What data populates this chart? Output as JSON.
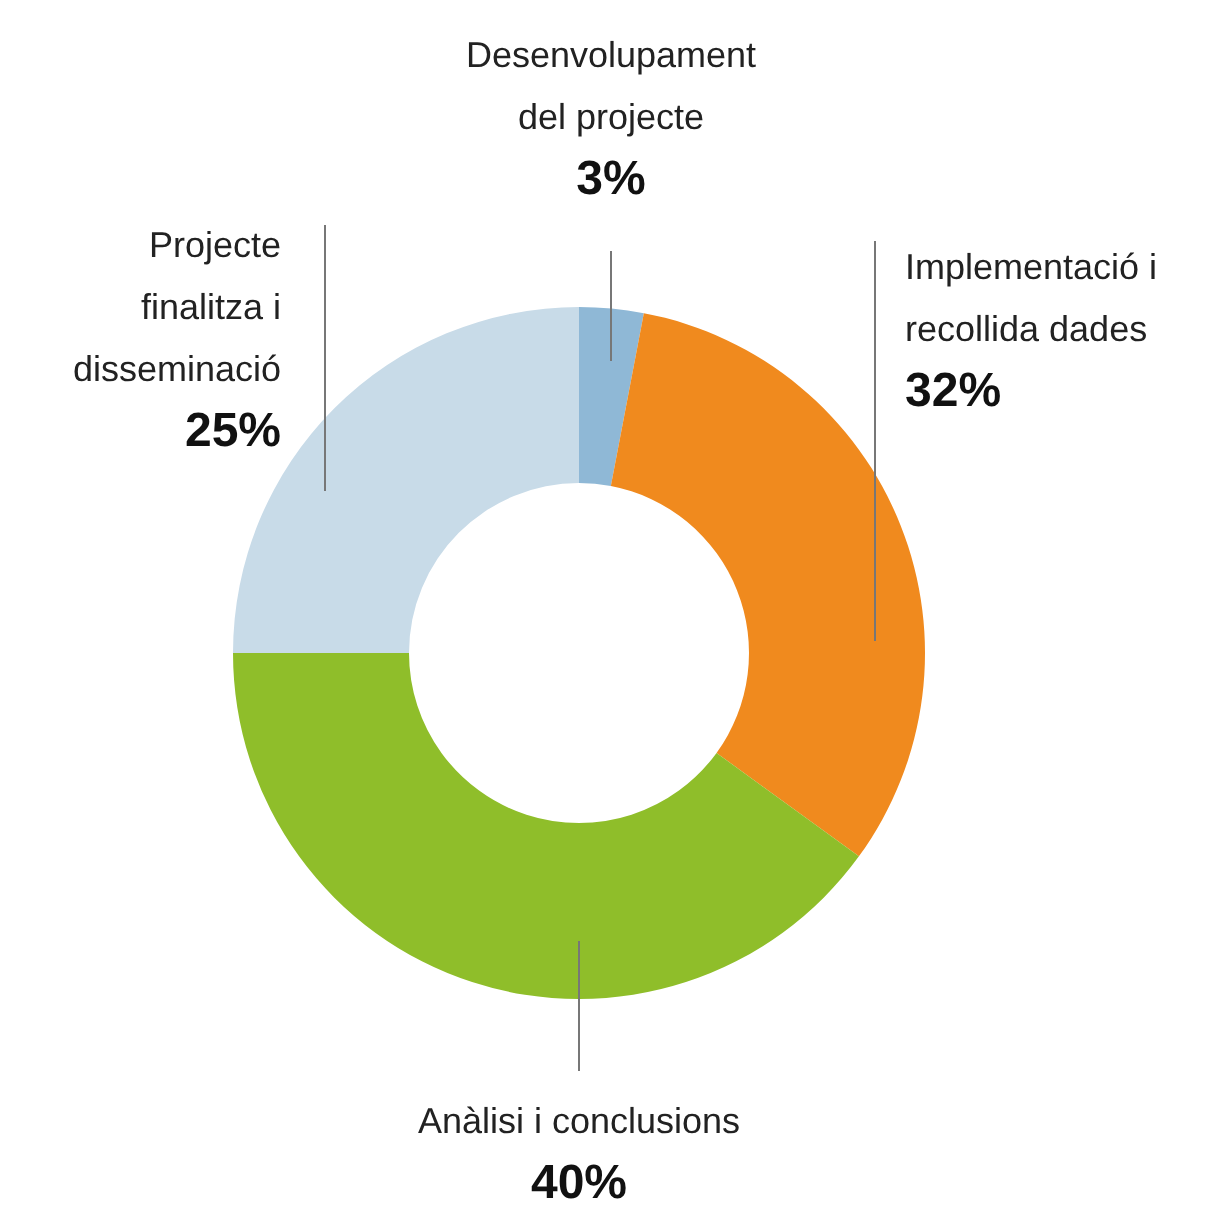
{
  "chart_data": {
    "type": "donut",
    "categories": [
      "Desenvolupament del projecte",
      "Implementació i recollida dades",
      "Anàlisi i conclusions",
      "Projecte finalitza i disseminació"
    ],
    "values": [
      3,
      32,
      40,
      25
    ],
    "colors": [
      "#8fb8d6",
      "#f08a1e",
      "#8fbe2a",
      "#c8dbe8"
    ],
    "value_labels": [
      "3%",
      "32%",
      "40%",
      "25%"
    ]
  }
}
